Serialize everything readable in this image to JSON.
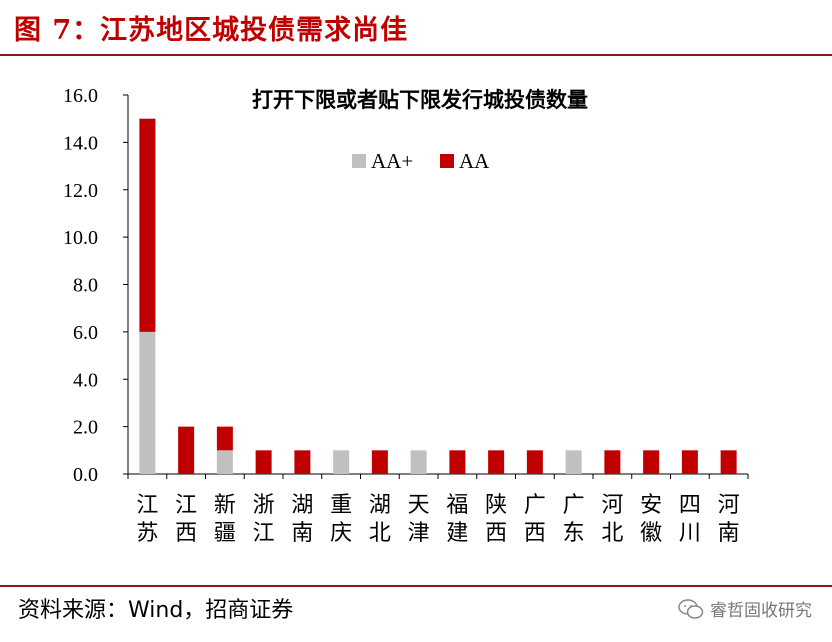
{
  "figure_title": "图 7：江苏地区城投债需求尚佳",
  "source_note": "资料来源：Wind，招商证券",
  "watermark": "睿哲固收研究",
  "colors": {
    "aa_plus": "#c0c0c0",
    "aa": "#c00000",
    "rule": "#8b1a1a"
  },
  "chart_data": {
    "type": "bar",
    "stacked": true,
    "title": "打开下限或者贴下限发行城投债数量",
    "categories": [
      "江苏",
      "江西",
      "新疆",
      "浙江",
      "湖南",
      "重庆",
      "湖北",
      "天津",
      "福建",
      "陕西",
      "广西",
      "广东",
      "河北",
      "安徽",
      "四川",
      "河南"
    ],
    "series": [
      {
        "name": "AA+",
        "color": "#c0c0c0",
        "values": [
          6,
          0,
          1,
          0,
          0,
          1,
          0,
          1,
          0,
          0,
          0,
          1,
          0,
          0,
          0,
          0
        ]
      },
      {
        "name": "AA",
        "color": "#c00000",
        "values": [
          9,
          2,
          1,
          1,
          1,
          0,
          1,
          0,
          1,
          1,
          1,
          0,
          1,
          1,
          1,
          1
        ]
      }
    ],
    "ylim": [
      0,
      16
    ],
    "yticks": [
      "0.0",
      "2.0",
      "4.0",
      "6.0",
      "8.0",
      "10.0",
      "12.0",
      "14.0",
      "16.0"
    ],
    "legend_position": "top-center",
    "grid": false
  }
}
